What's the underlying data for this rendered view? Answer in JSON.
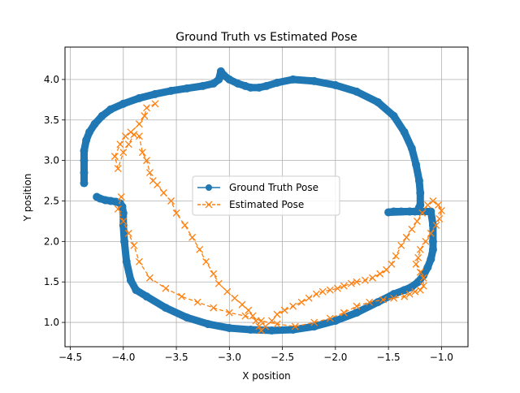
{
  "chart_data": {
    "type": "scatter",
    "title": "Ground Truth vs Estimated Pose",
    "xlabel": "X position",
    "ylabel": "Y position",
    "xlim": [
      -4.55,
      -0.75
    ],
    "ylim": [
      0.7,
      4.4
    ],
    "x_ticks": [
      -4.5,
      -4.0,
      -3.5,
      -3.0,
      -2.5,
      -2.0,
      -1.5,
      -1.0
    ],
    "x_tick_labels": [
      "−4.5",
      "−4.0",
      "−3.5",
      "−3.0",
      "−2.5",
      "−2.0",
      "−1.5",
      "−1.0"
    ],
    "y_ticks": [
      1.0,
      1.5,
      2.0,
      2.5,
      3.0,
      3.5,
      4.0
    ],
    "y_tick_labels": [
      "1.0",
      "1.5",
      "2.0",
      "2.5",
      "3.0",
      "3.5",
      "4.0"
    ],
    "grid": true,
    "legend_position": "center",
    "series": [
      {
        "name": "Ground Truth Pose",
        "color": "#1f77b4",
        "marker": "circle",
        "line": "solid",
        "x": [
          -4.37,
          -4.37,
          -4.37,
          -4.37,
          -4.35,
          -4.32,
          -4.27,
          -4.2,
          -4.12,
          -4.0,
          -3.85,
          -3.7,
          -3.55,
          -3.4,
          -3.25,
          -3.15,
          -3.1,
          -3.08,
          -3.05,
          -3.0,
          -2.92,
          -2.85,
          -2.8,
          -2.72,
          -2.65,
          -2.55,
          -2.4,
          -2.2,
          -2.0,
          -1.8,
          -1.6,
          -1.45,
          -1.35,
          -1.28,
          -1.24,
          -1.21,
          -1.2,
          -1.2,
          -1.21,
          -1.22,
          -1.25,
          -1.3,
          -1.38,
          -1.45,
          -1.5,
          -1.3,
          -1.1,
          -1.08,
          -1.08,
          -1.08,
          -1.1,
          -1.13,
          -1.17,
          -1.22,
          -1.28,
          -1.35,
          -1.45,
          -1.6,
          -1.8,
          -2.0,
          -2.2,
          -2.4,
          -2.6,
          -2.8,
          -3.0,
          -3.2,
          -3.4,
          -3.6,
          -3.78,
          -3.88,
          -3.93,
          -3.97,
          -3.99,
          -4.0,
          -4.0,
          -4.01,
          -4.03,
          -4.07,
          -4.12,
          -4.17,
          -4.22,
          -4.25
        ],
        "y": [
          2.72,
          2.85,
          3.0,
          3.12,
          3.25,
          3.35,
          3.45,
          3.55,
          3.63,
          3.7,
          3.77,
          3.82,
          3.86,
          3.89,
          3.92,
          3.95,
          4.0,
          4.1,
          4.05,
          4.0,
          3.95,
          3.92,
          3.9,
          3.9,
          3.92,
          3.96,
          4.0,
          3.98,
          3.93,
          3.85,
          3.72,
          3.55,
          3.35,
          3.15,
          2.95,
          2.75,
          2.6,
          2.45,
          2.42,
          2.38,
          2.37,
          2.37,
          2.37,
          2.37,
          2.36,
          2.37,
          2.37,
          2.2,
          2.0,
          1.9,
          1.78,
          1.68,
          1.58,
          1.5,
          1.44,
          1.4,
          1.35,
          1.25,
          1.12,
          1.02,
          0.95,
          0.91,
          0.9,
          0.91,
          0.93,
          0.98,
          1.06,
          1.18,
          1.32,
          1.4,
          1.52,
          1.75,
          2.0,
          2.2,
          2.35,
          2.43,
          2.47,
          2.49,
          2.5,
          2.51,
          2.53,
          2.55
        ]
      },
      {
        "name": "Estimated Pose",
        "color": "#ff7f0e",
        "marker": "x",
        "line": "dashed",
        "x": [
          -3.7,
          -3.78,
          -3.8,
          -3.85,
          -3.93,
          -3.98,
          -4.03,
          -4.08,
          -4.05,
          -4.0,
          -3.95,
          -3.9,
          -3.85,
          -3.82,
          -3.78,
          -3.75,
          -3.72,
          -3.68,
          -3.62,
          -3.55,
          -3.5,
          -3.42,
          -3.35,
          -3.28,
          -3.22,
          -3.15,
          -3.1,
          -3.02,
          -2.95,
          -2.88,
          -2.82,
          -2.78,
          -2.75,
          -2.72,
          -2.7,
          -2.66,
          -2.6,
          -2.55,
          -2.48,
          -2.4,
          -2.32,
          -2.25,
          -2.18,
          -2.12,
          -2.05,
          -1.98,
          -1.92,
          -1.85,
          -1.8,
          -1.72,
          -1.65,
          -1.58,
          -1.52,
          -1.47,
          -1.43,
          -1.38,
          -1.33,
          -1.28,
          -1.23,
          -1.18,
          -1.13,
          -1.08,
          -1.03,
          -1.0,
          -1.02,
          -1.05,
          -1.1,
          -1.15,
          -1.2,
          -1.22,
          -1.24,
          -1.2,
          -1.17,
          -1.17,
          -1.2,
          -1.25,
          -1.3,
          -1.35,
          -1.45,
          -1.55,
          -1.68,
          -1.8,
          -1.92,
          -2.05,
          -2.2,
          -2.38,
          -2.55,
          -2.7,
          -2.85,
          -3.0,
          -3.15,
          -3.3,
          -3.45,
          -3.6,
          -3.75,
          -3.85,
          -3.9,
          -3.95,
          -4.0,
          -4.05,
          -4.02
        ],
        "y": [
          3.7,
          3.65,
          3.55,
          3.45,
          3.35,
          3.3,
          3.2,
          3.05,
          2.9,
          3.1,
          3.2,
          3.32,
          3.3,
          3.1,
          3.0,
          2.85,
          2.75,
          2.7,
          2.6,
          2.5,
          2.35,
          2.2,
          2.05,
          1.9,
          1.75,
          1.6,
          1.48,
          1.38,
          1.3,
          1.22,
          1.15,
          1.08,
          1.02,
          0.95,
          0.9,
          0.95,
          1.02,
          1.1,
          1.15,
          1.2,
          1.25,
          1.3,
          1.35,
          1.38,
          1.4,
          1.42,
          1.45,
          1.48,
          1.5,
          1.52,
          1.55,
          1.6,
          1.65,
          1.72,
          1.82,
          1.95,
          2.05,
          2.15,
          2.25,
          2.35,
          2.45,
          2.5,
          2.45,
          2.38,
          2.28,
          2.2,
          2.1,
          2.0,
          1.9,
          1.8,
          1.72,
          1.62,
          1.55,
          1.45,
          1.4,
          1.38,
          1.35,
          1.32,
          1.3,
          1.28,
          1.25,
          1.2,
          1.12,
          1.05,
          1.0,
          0.95,
          0.98,
          1.02,
          1.08,
          1.12,
          1.18,
          1.25,
          1.32,
          1.42,
          1.55,
          1.75,
          1.95,
          2.1,
          2.25,
          2.4,
          2.55
        ]
      }
    ]
  }
}
